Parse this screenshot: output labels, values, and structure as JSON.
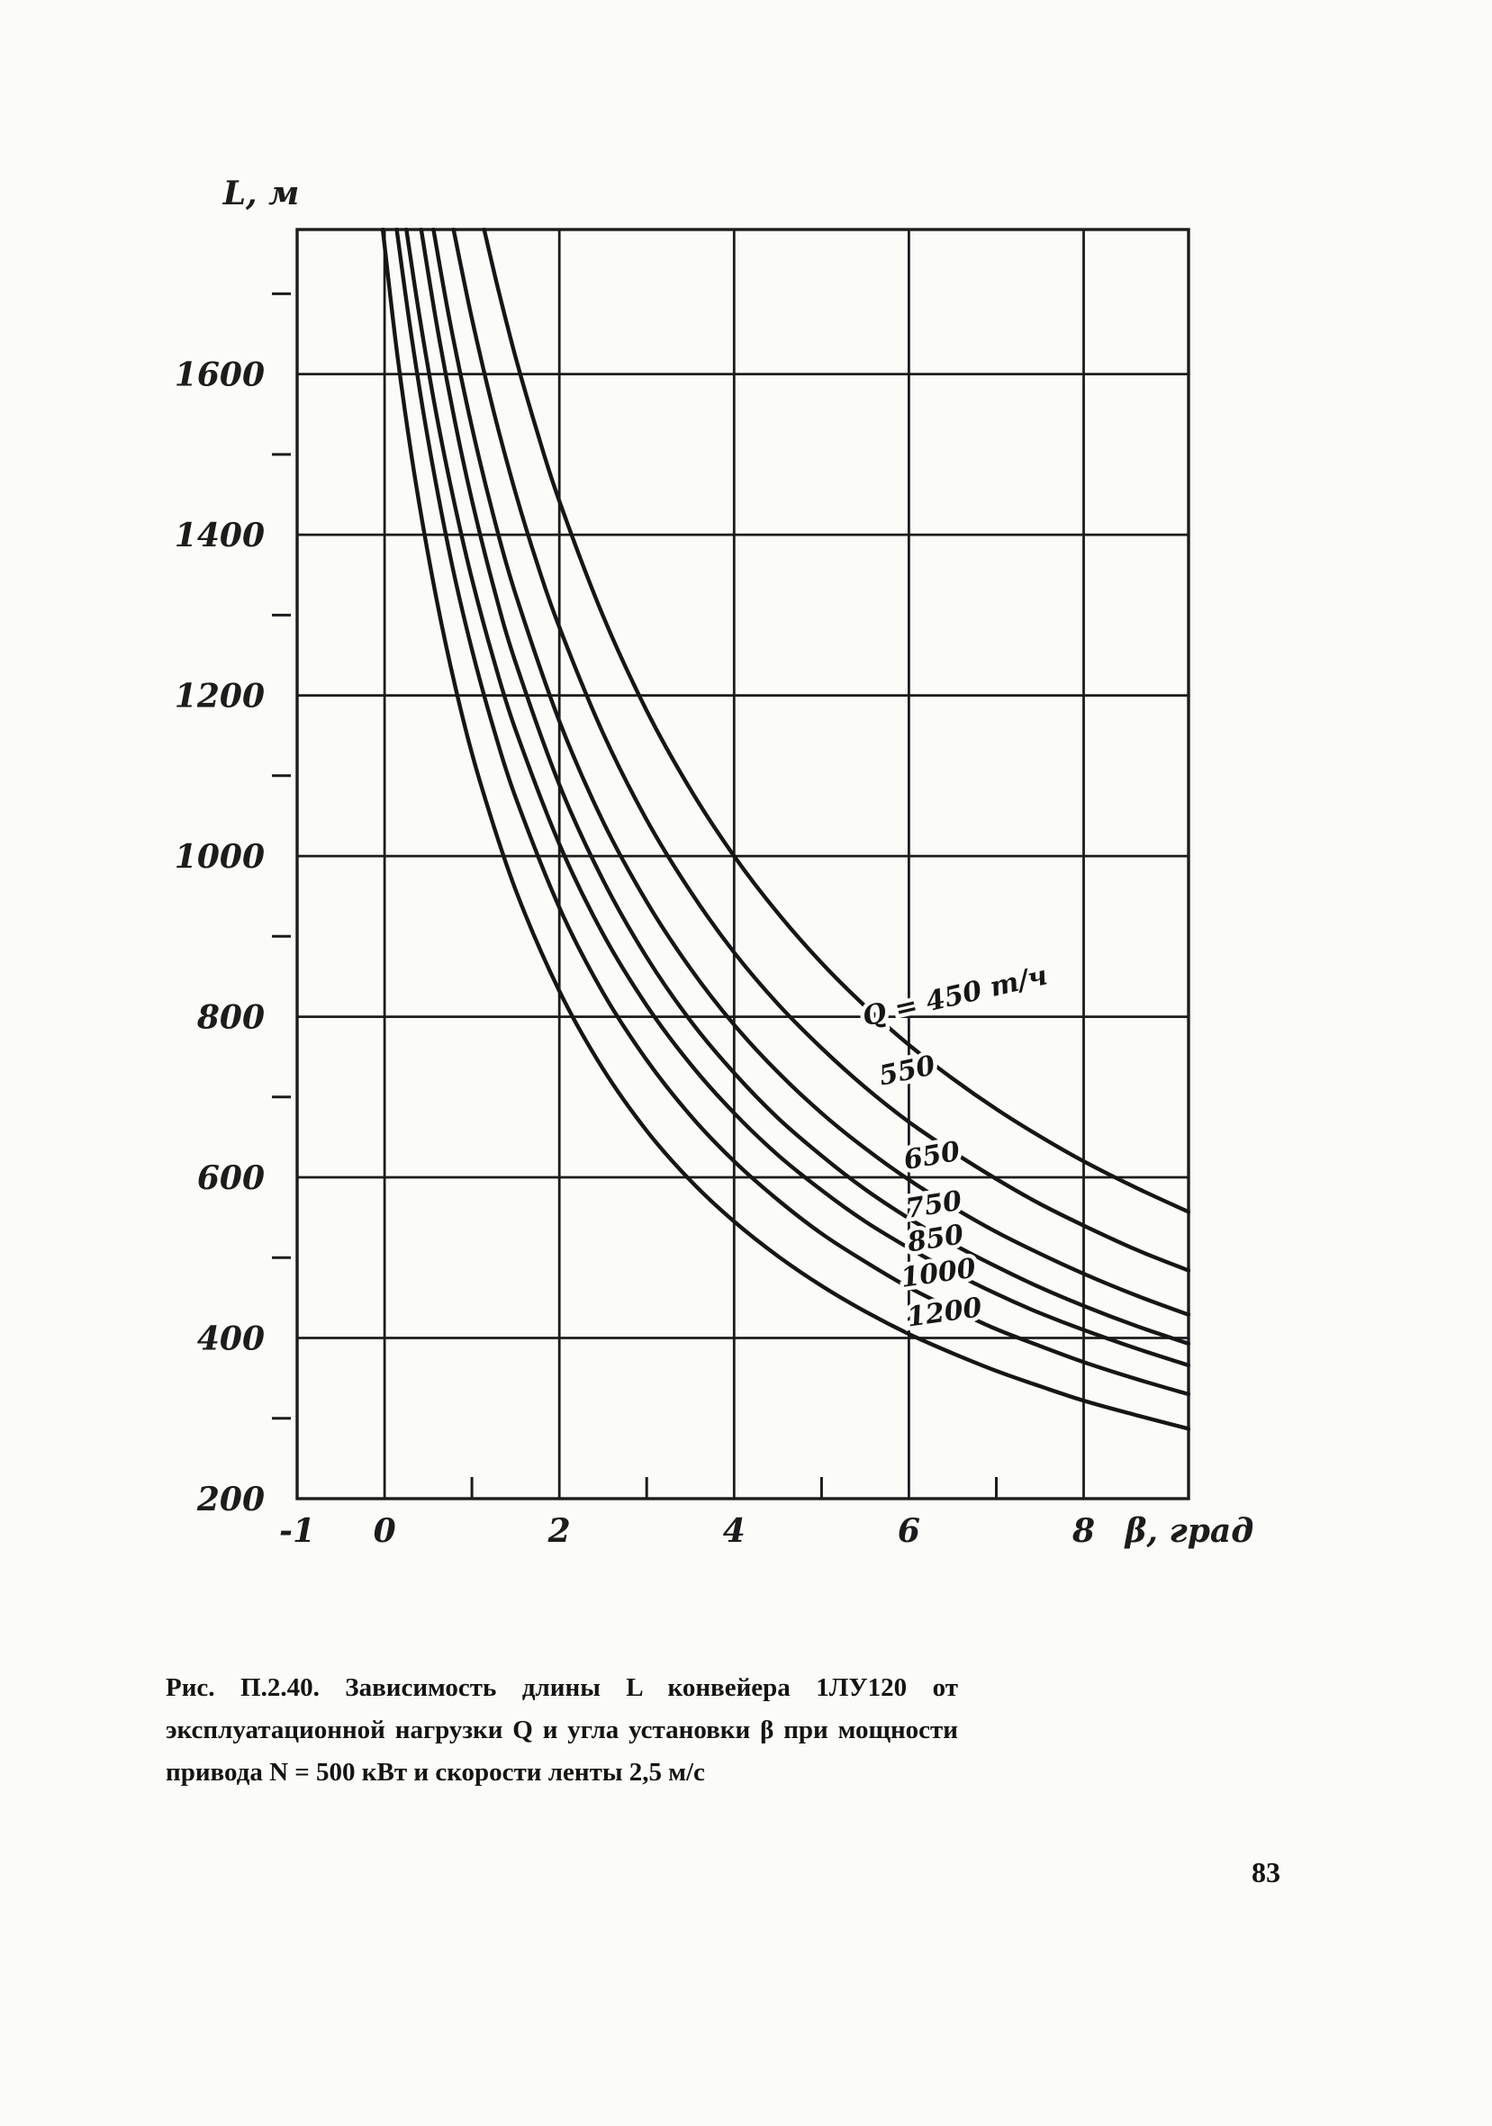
{
  "page": {
    "number": "83"
  },
  "figure": {
    "caption_lines": [
      "Рис. П.2.40. Зависимость длины L конвейера 1ЛУ120 от",
      "эксплуатационной нагрузки Q и угла установки β при мощности",
      "привода N = 500 кВт и скорости ленты 2,5 м/с"
    ]
  },
  "colors": {
    "ink": "#1c1c1c",
    "paper": "#fbfbf8"
  },
  "chart_data": {
    "type": "line",
    "title": "",
    "xlabel": "β, град",
    "ylabel": "L, м",
    "xlim": [
      -1,
      9.2
    ],
    "ylim": [
      200,
      1780
    ],
    "grid": true,
    "legend_position": "labels-on-curves",
    "x_gridlines": [
      0,
      2,
      4,
      6,
      8
    ],
    "y_gridlines": [
      400,
      600,
      800,
      1000,
      1200,
      1400,
      1600
    ],
    "x_minor_ticks": [
      1,
      3,
      5,
      7
    ],
    "y_minor_ticks": [
      300,
      500,
      700,
      900,
      1100,
      1300,
      1500,
      1700
    ],
    "x_tick_labels": [
      {
        "v": -1,
        "t": "-1"
      },
      {
        "v": 0,
        "t": "0"
      },
      {
        "v": 2,
        "t": "2"
      },
      {
        "v": 4,
        "t": "4"
      },
      {
        "v": 6,
        "t": "6"
      },
      {
        "v": 8,
        "t": "8"
      }
    ],
    "y_tick_labels": [
      {
        "v": 200,
        "t": "200"
      },
      {
        "v": 400,
        "t": "400"
      },
      {
        "v": 600,
        "t": "600"
      },
      {
        "v": 800,
        "t": "800"
      },
      {
        "v": 1000,
        "t": "1000"
      },
      {
        "v": 1200,
        "t": "1200"
      },
      {
        "v": 1400,
        "t": "1400"
      },
      {
        "v": 1600,
        "t": "1600"
      }
    ],
    "series": [
      {
        "name": "Q = 450 т/ч",
        "q": 450,
        "label": {
          "x": 6.55,
          "y": 815,
          "rot": -13
        },
        "points": [
          [
            1.14,
            1780
          ],
          [
            1.3,
            1706
          ],
          [
            1.5,
            1621
          ],
          [
            1.75,
            1527
          ],
          [
            2,
            1442
          ],
          [
            2.5,
            1299
          ],
          [
            3,
            1181
          ],
          [
            3.5,
            1083
          ],
          [
            4,
            1000
          ],
          [
            4.5,
            929
          ],
          [
            5,
            867
          ],
          [
            5.5,
            813
          ],
          [
            6,
            765
          ],
          [
            6.5,
            723
          ],
          [
            7,
            685
          ],
          [
            7.5,
            651
          ],
          [
            8,
            620
          ],
          [
            8.6,
            587
          ],
          [
            9.2,
            557
          ]
        ]
      },
      {
        "name": "550",
        "q": 550,
        "label": {
          "x": 6.0,
          "y": 722,
          "rot": -12
        },
        "points": [
          [
            0.79,
            1780
          ],
          [
            1,
            1669
          ],
          [
            1.25,
            1553
          ],
          [
            1.5,
            1452
          ],
          [
            1.75,
            1363
          ],
          [
            2,
            1285
          ],
          [
            2.5,
            1153
          ],
          [
            3,
            1045
          ],
          [
            3.5,
            956
          ],
          [
            4,
            880
          ],
          [
            4.5,
            816
          ],
          [
            5,
            761
          ],
          [
            5.5,
            712
          ],
          [
            6,
            669
          ],
          [
            6.5,
            632
          ],
          [
            7,
            598
          ],
          [
            7.5,
            567
          ],
          [
            8,
            540
          ],
          [
            8.6,
            510
          ],
          [
            9.2,
            484
          ]
        ]
      },
      {
        "name": "650",
        "q": 650,
        "label": {
          "x": 6.28,
          "y": 616,
          "rot": -10
        },
        "points": [
          [
            0.56,
            1780
          ],
          [
            0.75,
            1664
          ],
          [
            1,
            1534
          ],
          [
            1.25,
            1422
          ],
          [
            1.5,
            1326
          ],
          [
            2,
            1168
          ],
          [
            2.5,
            1043
          ],
          [
            3,
            943
          ],
          [
            3.5,
            860
          ],
          [
            4,
            790
          ],
          [
            4.5,
            731
          ],
          [
            5,
            680
          ],
          [
            5.5,
            636
          ],
          [
            6,
            597
          ],
          [
            6.5,
            563
          ],
          [
            7,
            532
          ],
          [
            7.5,
            505
          ],
          [
            8,
            480
          ],
          [
            8.6,
            453
          ],
          [
            9.2,
            429
          ]
        ]
      },
      {
        "name": "750",
        "q": 750,
        "label": {
          "x": 6.3,
          "y": 555,
          "rot": -9
        },
        "points": [
          [
            0.42,
            1780
          ],
          [
            0.6,
            1660
          ],
          [
            0.8,
            1544
          ],
          [
            1,
            1443
          ],
          [
            1.25,
            1334
          ],
          [
            1.5,
            1241
          ],
          [
            2,
            1089
          ],
          [
            2.5,
            970
          ],
          [
            3,
            874
          ],
          [
            3.5,
            795
          ],
          [
            4,
            730
          ],
          [
            4.5,
            674
          ],
          [
            5,
            627
          ],
          [
            5.5,
            585
          ],
          [
            6,
            549
          ],
          [
            6.5,
            517
          ],
          [
            7,
            489
          ],
          [
            7.5,
            463
          ],
          [
            8,
            440
          ],
          [
            8.6,
            415
          ],
          [
            9.2,
            393
          ]
        ]
      },
      {
        "name": "850",
        "q": 850,
        "label": {
          "x": 6.32,
          "y": 513,
          "rot": -9
        },
        "points": [
          [
            0.25,
            1780
          ],
          [
            0.4,
            1672
          ],
          [
            0.6,
            1546
          ],
          [
            0.8,
            1439
          ],
          [
            1,
            1345
          ],
          [
            1.25,
            1244
          ],
          [
            1.5,
            1157
          ],
          [
            2,
            1015
          ],
          [
            2.5,
            903
          ],
          [
            3,
            814
          ],
          [
            3.5,
            741
          ],
          [
            4,
            680
          ],
          [
            4.5,
            628
          ],
          [
            5,
            584
          ],
          [
            5.5,
            545
          ],
          [
            6,
            512
          ],
          [
            6.5,
            482
          ],
          [
            7,
            455
          ],
          [
            7.5,
            431
          ],
          [
            8,
            410
          ],
          [
            8.6,
            387
          ],
          [
            9.2,
            366
          ]
        ]
      },
      {
        "name": "1000",
        "q": 1000,
        "label": {
          "x": 6.35,
          "y": 470,
          "rot": -8
        },
        "points": [
          [
            0.14,
            1780
          ],
          [
            0.3,
            1653
          ],
          [
            0.5,
            1517
          ],
          [
            0.75,
            1374
          ],
          [
            1,
            1257
          ],
          [
            1.25,
            1158
          ],
          [
            1.5,
            1073
          ],
          [
            2,
            936
          ],
          [
            2.5,
            830
          ],
          [
            3,
            746
          ],
          [
            3.5,
            677
          ],
          [
            4,
            620
          ],
          [
            4.5,
            572
          ],
          [
            5,
            530
          ],
          [
            5.5,
            495
          ],
          [
            6,
            463
          ],
          [
            6.5,
            436
          ],
          [
            7,
            411
          ],
          [
            7.5,
            390
          ],
          [
            8,
            370
          ],
          [
            8.6,
            349
          ],
          [
            9.2,
            330
          ]
        ]
      },
      {
        "name": "1200",
        "q": 1200,
        "label": {
          "x": 6.42,
          "y": 421,
          "rot": -8
        },
        "points": [
          [
            -0.02,
            1780
          ],
          [
            0.15,
            1621
          ],
          [
            0.35,
            1470
          ],
          [
            0.6,
            1317
          ],
          [
            0.85,
            1192
          ],
          [
            1.1,
            1090
          ],
          [
            1.5,
            958
          ],
          [
            2,
            832
          ],
          [
            2.5,
            735
          ],
          [
            3,
            658
          ],
          [
            3.5,
            596
          ],
          [
            4,
            545
          ],
          [
            4.5,
            502
          ],
          [
            5,
            465
          ],
          [
            5.5,
            433
          ],
          [
            6,
            405
          ],
          [
            6.5,
            381
          ],
          [
            7,
            359
          ],
          [
            7.5,
            340
          ],
          [
            8,
            322
          ],
          [
            8.6,
            304
          ],
          [
            9.2,
            287
          ]
        ]
      }
    ]
  }
}
